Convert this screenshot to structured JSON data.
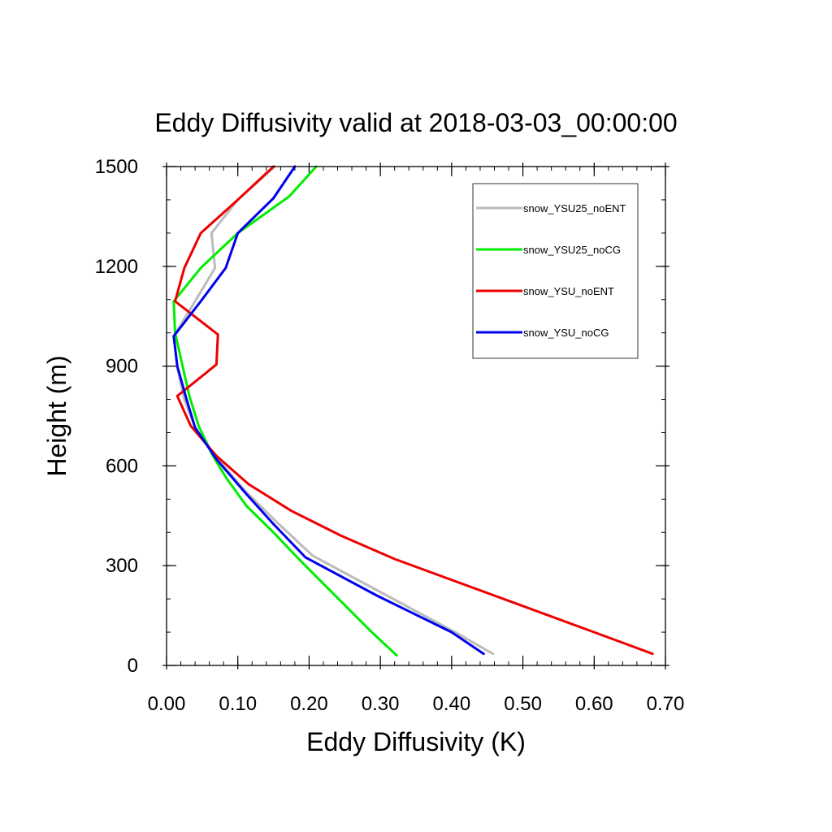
{
  "chart_data": {
    "type": "line",
    "title": "Eddy Diffusivity valid at 2018-03-03_00:00:00",
    "xlabel": "Eddy Diffusivity (K)",
    "ylabel": "Height (m)",
    "xlim": [
      0,
      0.7
    ],
    "ylim": [
      0,
      1500
    ],
    "xticks": [
      0,
      0.1,
      0.2,
      0.3,
      0.4,
      0.5,
      0.6,
      0.7
    ],
    "xtick_labels": [
      "0.00",
      "0.10",
      "0.20",
      "0.30",
      "0.40",
      "0.50",
      "0.60",
      "0.70"
    ],
    "yticks": [
      0,
      300,
      600,
      900,
      1200,
      1500
    ],
    "ytick_labels": [
      "0",
      "300",
      "600",
      "900",
      "1200",
      "1500"
    ],
    "grid": false,
    "legend_position": "top-right",
    "series": [
      {
        "name": "snow_YSU25_noENT",
        "color": "#bbbbbb",
        "points": [
          [
            0.458,
            35
          ],
          [
            0.405,
            100
          ],
          [
            0.305,
            215
          ],
          [
            0.205,
            330
          ],
          [
            0.155,
            430
          ],
          [
            0.11,
            525
          ],
          [
            0.07,
            625
          ],
          [
            0.04,
            715
          ],
          [
            0.025,
            800
          ],
          [
            0.015,
            895
          ],
          [
            0.01,
            990
          ],
          [
            0.04,
            1095
          ],
          [
            0.068,
            1195
          ],
          [
            0.063,
            1300
          ],
          [
            0.1,
            1400
          ],
          [
            0.152,
            1500
          ]
        ]
      },
      {
        "name": "snow_YSU25_noCG",
        "color": "#00ee00",
        "points": [
          [
            0.323,
            30
          ],
          [
            0.288,
            100
          ],
          [
            0.19,
            310
          ],
          [
            0.15,
            400
          ],
          [
            0.112,
            480
          ],
          [
            0.085,
            560
          ],
          [
            0.065,
            630
          ],
          [
            0.045,
            720
          ],
          [
            0.032,
            810
          ],
          [
            0.022,
            905
          ],
          [
            0.012,
            1000
          ],
          [
            0.01,
            1095
          ],
          [
            0.048,
            1195
          ],
          [
            0.1,
            1300
          ],
          [
            0.172,
            1410
          ],
          [
            0.21,
            1500
          ]
        ]
      },
      {
        "name": "snow_YSU_noENT",
        "color": "#ee0000",
        "points": [
          [
            0.682,
            35
          ],
          [
            0.6,
            100
          ],
          [
            0.32,
            320
          ],
          [
            0.245,
            390
          ],
          [
            0.175,
            465
          ],
          [
            0.115,
            545
          ],
          [
            0.07,
            630
          ],
          [
            0.034,
            720
          ],
          [
            0.015,
            810
          ],
          [
            0.07,
            905
          ],
          [
            0.072,
            995
          ],
          [
            0.012,
            1095
          ],
          [
            0.025,
            1195
          ],
          [
            0.048,
            1300
          ],
          [
            0.1,
            1400
          ],
          [
            0.15,
            1500
          ]
        ]
      },
      {
        "name": "snow_YSU_noCG",
        "color": "#0000ee",
        "points": [
          [
            0.445,
            35
          ],
          [
            0.4,
            100
          ],
          [
            0.295,
            210
          ],
          [
            0.195,
            325
          ],
          [
            0.15,
            425
          ],
          [
            0.11,
            520
          ],
          [
            0.07,
            620
          ],
          [
            0.04,
            715
          ],
          [
            0.028,
            800
          ],
          [
            0.015,
            900
          ],
          [
            0.01,
            990
          ],
          [
            0.048,
            1095
          ],
          [
            0.083,
            1195
          ],
          [
            0.1,
            1300
          ],
          [
            0.15,
            1405
          ],
          [
            0.18,
            1500
          ]
        ]
      }
    ]
  }
}
